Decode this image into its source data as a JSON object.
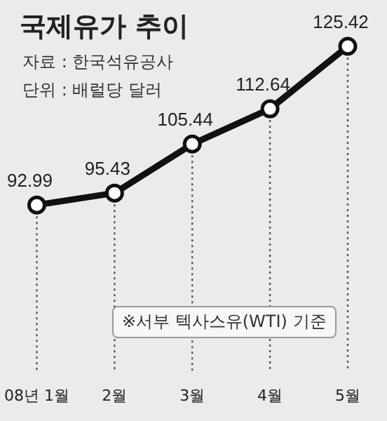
{
  "chart_data": {
    "type": "line",
    "title": "국제유가 추이",
    "subtitle": "단위 : 배럴당 달러",
    "annotations": [
      "자료 : 한국석유공사",
      "※서부 텍사스유(WTI) 기준"
    ],
    "categories": [
      "08년 1월",
      "2월",
      "3월",
      "4월",
      "5월"
    ],
    "values": [
      92.99,
      95.43,
      105.44,
      112.64,
      125.42
    ],
    "color": "#111111",
    "marker": "circle",
    "line_style": "solid",
    "data_labels": true,
    "grid": "x",
    "legend": false,
    "tick_labels": "x"
  }
}
